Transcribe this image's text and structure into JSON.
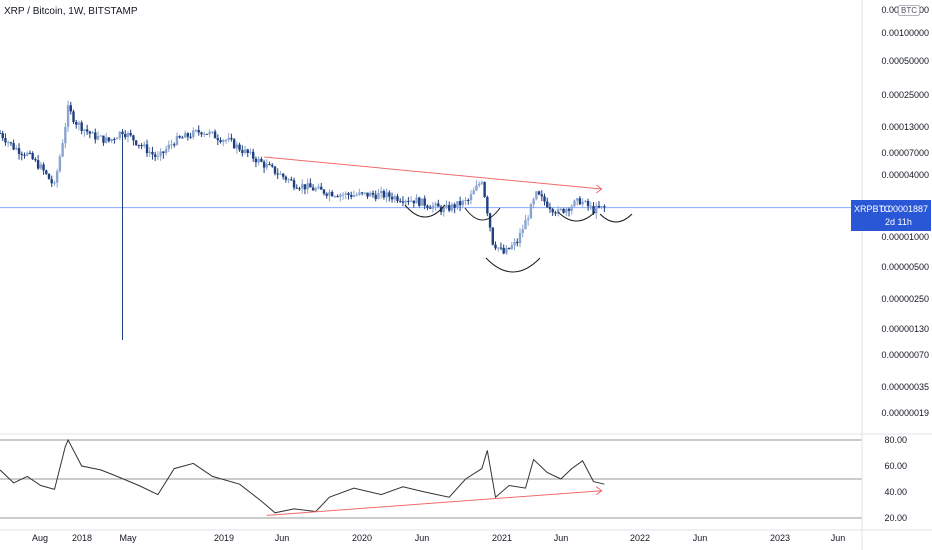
{
  "header": {
    "title": "XRP / Bitcoin, 1W, BITSTAMP"
  },
  "badge": {
    "currency": "BTC"
  },
  "price_label": {
    "symbol": "XRPBTC",
    "price": "0.00001887",
    "countdown": "2d 11h"
  },
  "colors": {
    "candle_up": "#8aa4cf",
    "candle_down": "#1e3f80",
    "trendline": "#f26b6b",
    "price_line": "#2962ff",
    "rsi_line": "#333333",
    "guide_line": "#9a9a9a",
    "shape": "#1b1b1b"
  },
  "chart_data": [
    {
      "type": "candlestick",
      "title": "XRP / Bitcoin, 1W, BITSTAMP",
      "y_scale": "log",
      "y_ticks": [
        "0.00180000",
        "0.00100000",
        "0.00050000",
        "0.00025000",
        "0.00013000",
        "0.00007000",
        "0.00004000",
        "0.00001000",
        "0.00000500",
        "0.00000250",
        "0.00000130",
        "0.00000070",
        "0.00000035",
        "0.00000019"
      ],
      "last_price": 1.887e-05,
      "x_ticks": [
        "Aug",
        "2018",
        "May",
        "2019",
        "Jun",
        "2020",
        "Jun",
        "2021",
        "Jun",
        "2022",
        "Jun",
        "2023",
        "Jun"
      ],
      "price_path": [
        {
          "date": "2017-07-10",
          "close": 9.5e-05
        },
        {
          "date": "2017-08-14",
          "close": 7e-05
        },
        {
          "date": "2017-09-18",
          "close": 6e-05
        },
        {
          "date": "2017-10-23",
          "close": 4.5e-05
        },
        {
          "date": "2017-11-27",
          "close": 3e-05
        },
        {
          "date": "2017-12-18",
          "close": 8e-05
        },
        {
          "date": "2018-01-01",
          "close": 0.00016
        },
        {
          "date": "2018-01-22",
          "close": 0.00012
        },
        {
          "date": "2018-03-05",
          "close": 9e-05
        },
        {
          "date": "2018-04-16",
          "close": 8e-05
        },
        {
          "date": "2018-05-21",
          "close": 0.0001
        },
        {
          "date": "2018-08-20",
          "close": 5.5e-05
        },
        {
          "date": "2018-10-01",
          "close": 8e-05
        },
        {
          "date": "2018-12-10",
          "close": 0.0001
        },
        {
          "date": "2019-02-18",
          "close": 8e-05
        },
        {
          "date": "2019-05-13",
          "close": 5e-05
        },
        {
          "date": "2019-08-05",
          "close": 3.2e-05
        },
        {
          "date": "2019-10-14",
          "close": 2.7e-05
        },
        {
          "date": "2019-12-16",
          "close": 2.5e-05
        },
        {
          "date": "2020-03-16",
          "close": 2.5e-05
        },
        {
          "date": "2020-06-15",
          "close": 2.2e-05
        },
        {
          "date": "2020-08-24",
          "close": 1.8e-05
        },
        {
          "date": "2020-10-26",
          "close": 2.2e-05
        },
        {
          "date": "2020-11-30",
          "close": 3.5e-05
        },
        {
          "date": "2020-12-28",
          "close": 9e-06
        },
        {
          "date": "2021-01-25",
          "close": 7e-06
        },
        {
          "date": "2021-03-01",
          "close": 9e-06
        },
        {
          "date": "2021-04-19",
          "close": 2.5e-05
        },
        {
          "date": "2021-06-14",
          "close": 1.7e-05
        },
        {
          "date": "2021-08-09",
          "close": 2.2e-05
        },
        {
          "date": "2021-09-13",
          "close": 1.8e-05
        },
        {
          "date": "2021-10-11",
          "close": 1.887e-05
        }
      ],
      "annotations": [
        "descending trendline",
        "head and shoulders arcs"
      ]
    },
    {
      "type": "line",
      "title": "",
      "y_ticks": [
        "80.00",
        "60.00",
        "40.00",
        "20.00"
      ],
      "ylim": [
        20,
        85
      ],
      "series": [
        {
          "values": [
            {
              "date": "2017-07-10",
              "v": 57
            },
            {
              "date": "2017-08-14",
              "v": 47
            },
            {
              "date": "2017-09-18",
              "v": 52
            },
            {
              "date": "2017-10-23",
              "v": 45
            },
            {
              "date": "2017-11-27",
              "v": 42
            },
            {
              "date": "2017-12-25",
              "v": 75
            },
            {
              "date": "2018-01-01",
              "v": 80
            },
            {
              "date": "2018-02-05",
              "v": 60
            },
            {
              "date": "2018-03-26",
              "v": 57
            },
            {
              "date": "2018-05-07",
              "v": 52
            },
            {
              "date": "2018-07-02",
              "v": 45
            },
            {
              "date": "2018-08-20",
              "v": 38
            },
            {
              "date": "2018-10-01",
              "v": 58
            },
            {
              "date": "2018-11-19",
              "v": 62
            },
            {
              "date": "2019-01-07",
              "v": 52
            },
            {
              "date": "2019-03-18",
              "v": 46
            },
            {
              "date": "2019-05-13",
              "v": 33
            },
            {
              "date": "2019-06-17",
              "v": 24
            },
            {
              "date": "2019-08-05",
              "v": 27
            },
            {
              "date": "2019-09-30",
              "v": 25
            },
            {
              "date": "2019-11-04",
              "v": 36
            },
            {
              "date": "2020-01-06",
              "v": 43
            },
            {
              "date": "2020-03-16",
              "v": 38
            },
            {
              "date": "2020-05-11",
              "v": 44
            },
            {
              "date": "2020-07-06",
              "v": 40
            },
            {
              "date": "2020-09-07",
              "v": 36
            },
            {
              "date": "2020-10-19",
              "v": 50
            },
            {
              "date": "2020-11-30",
              "v": 58
            },
            {
              "date": "2020-12-14",
              "v": 72
            },
            {
              "date": "2021-01-04",
              "v": 36
            },
            {
              "date": "2021-02-08",
              "v": 45
            },
            {
              "date": "2021-03-22",
              "v": 43
            },
            {
              "date": "2021-04-12",
              "v": 65
            },
            {
              "date": "2021-05-17",
              "v": 55
            },
            {
              "date": "2021-06-21",
              "v": 50
            },
            {
              "date": "2021-07-19",
              "v": 58
            },
            {
              "date": "2021-08-16",
              "v": 64
            },
            {
              "date": "2021-09-13",
              "v": 48
            },
            {
              "date": "2021-10-11",
              "v": 46
            }
          ]
        }
      ]
    }
  ]
}
